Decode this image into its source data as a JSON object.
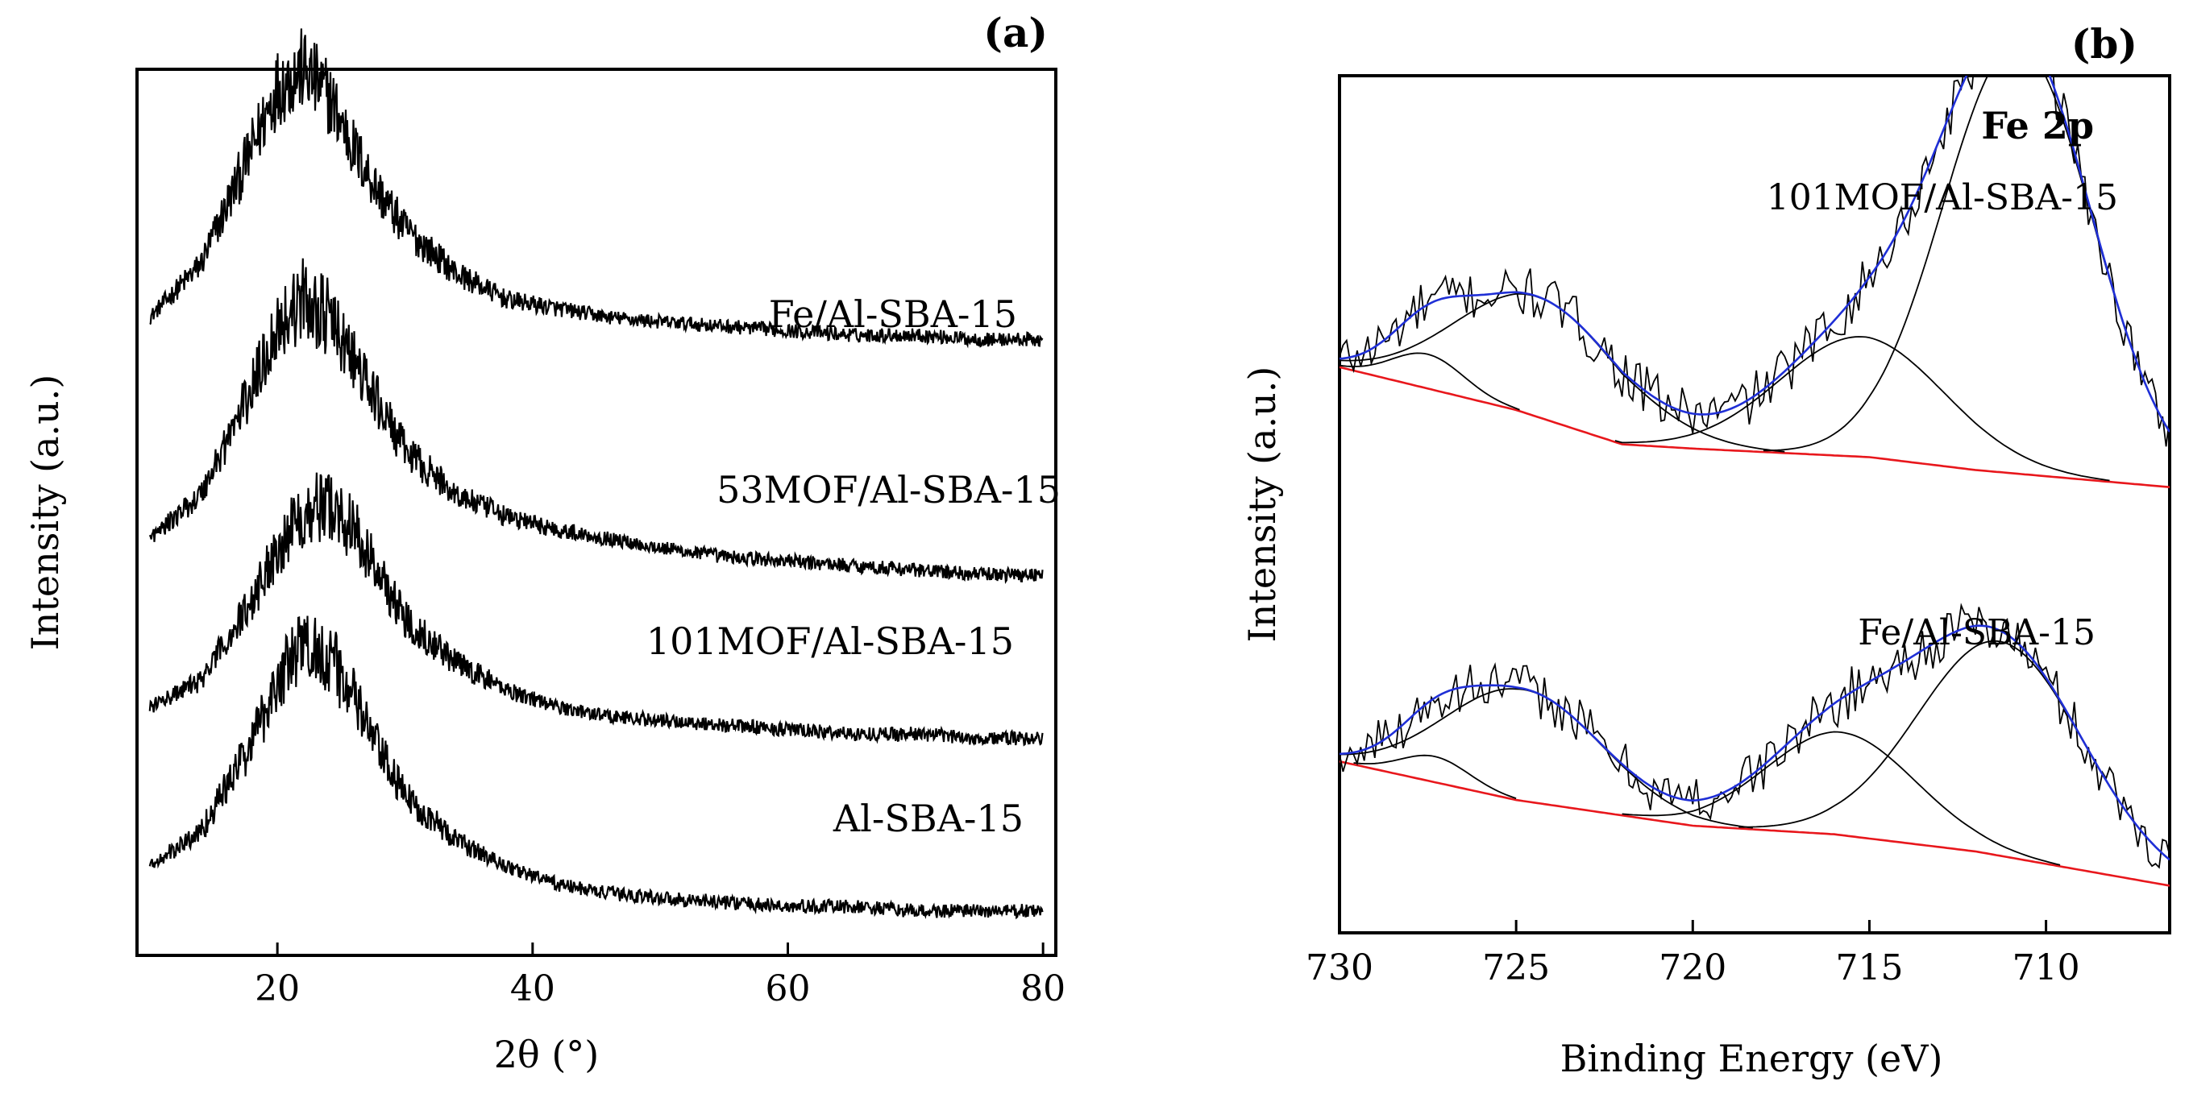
{
  "figure": {
    "panel_a_label": "(a)",
    "panel_b_label": "(b)"
  },
  "chart_data": [
    {
      "panel": "(a)",
      "type": "line",
      "title": "",
      "xlabel": "2θ (°)",
      "ylabel": "Intensity (a.u.)",
      "xlim": [
        9,
        81
      ],
      "ylim": [
        0,
        100
      ],
      "xticks": [
        20,
        40,
        60,
        80
      ],
      "xtick_labels": [
        "20",
        "40",
        "60",
        "80"
      ],
      "yticks_shown": false,
      "grid": false,
      "series": [
        {
          "name": "Fe/Al-SBA-15",
          "offset": 72,
          "x": [
            10,
            14,
            18,
            20,
            22,
            24,
            26,
            28,
            30,
            34,
            38,
            42,
            46,
            50,
            55,
            60,
            65,
            70,
            75,
            80
          ],
          "values": [
            0,
            6,
            19,
            26,
            28,
            25,
            19,
            14,
            10,
            5,
            2,
            1,
            0,
            -0.5,
            -1,
            -1.5,
            -2,
            -2,
            -2.5,
            -2.5
          ]
        },
        {
          "name": "53MOF/Al-SBA-15",
          "offset": 47,
          "x": [
            10,
            14,
            18,
            20,
            22,
            24,
            26,
            28,
            30,
            34,
            38,
            42,
            46,
            50,
            55,
            60,
            65,
            70,
            75,
            80
          ],
          "values": [
            0,
            5,
            17,
            24,
            27,
            25,
            20,
            15,
            10,
            5,
            2.5,
            1,
            0,
            -1,
            -2,
            -2.5,
            -3,
            -3.5,
            -4,
            -4
          ]
        },
        {
          "name": "101MOF/Al-SBA-15",
          "offset": 28,
          "x": [
            10,
            14,
            18,
            20,
            22,
            24,
            26,
            28,
            30,
            34,
            38,
            42,
            46,
            50,
            55,
            60,
            65,
            70,
            75,
            80
          ],
          "values": [
            0,
            3,
            12,
            18,
            22,
            23,
            20,
            15,
            10,
            5,
            2,
            0,
            -1,
            -1.5,
            -2,
            -2.5,
            -3,
            -3,
            -3.5,
            -3.5
          ]
        },
        {
          "name": "Al-SBA-15",
          "offset": 10,
          "x": [
            10,
            14,
            18,
            20,
            22,
            24,
            26,
            28,
            30,
            34,
            38,
            42,
            46,
            50,
            55,
            60,
            65,
            70,
            75,
            80
          ],
          "values": [
            0,
            4,
            14,
            21,
            25,
            24,
            19,
            13,
            8,
            3,
            0,
            -2,
            -3,
            -3.5,
            -4,
            -4.5,
            -4.5,
            -5,
            -5,
            -5
          ]
        }
      ]
    },
    {
      "panel": "(b)",
      "type": "line",
      "title": "Fe 2p",
      "xlabel": "Binding Energy (eV)",
      "ylabel": "Intensity (a.u.)",
      "xlim": [
        730,
        706.5
      ],
      "ylim": [
        0,
        100
      ],
      "xticks": [
        730,
        725,
        720,
        715,
        710
      ],
      "xtick_labels": [
        "730",
        "725",
        "720",
        "715",
        "710"
      ],
      "yticks_shown": false,
      "grid": false,
      "samples": [
        {
          "name": "101MOF/Al-SBA-15",
          "baseline": [
            [
              730,
              66
            ],
            [
              725,
              61
            ],
            [
              722,
              57
            ],
            [
              720,
              56.5
            ],
            [
              715,
              55.5
            ],
            [
              712,
              54
            ],
            [
              706.5,
              52
            ]
          ],
          "components": [
            {
              "center": 727.5,
              "fwhm": 2.4,
              "height": 4
            },
            {
              "center": 724.4,
              "fwhm": 5.5,
              "height": 14
            },
            {
              "center": 715.2,
              "fwhm": 5.5,
              "height": 14
            },
            {
              "center": 710.8,
              "fwhm": 5.0,
              "height": 50
            }
          ],
          "raw_noise": 3
        },
        {
          "name": "Fe/Al-SBA-15",
          "baseline": [
            [
              730,
              20
            ],
            [
              725,
              15.5
            ],
            [
              720,
              12.5
            ],
            [
              716,
              11.5
            ],
            [
              712,
              9.5
            ],
            [
              706.5,
              5.5
            ]
          ],
          "components": [
            {
              "center": 727.3,
              "fwhm": 2.3,
              "height": 3
            },
            {
              "center": 724.8,
              "fwhm": 5.2,
              "height": 13
            },
            {
              "center": 715.8,
              "fwhm": 5.0,
              "height": 12
            },
            {
              "center": 711.3,
              "fwhm": 5.5,
              "height": 25
            }
          ],
          "raw_noise": 3
        }
      ],
      "colors": {
        "raw": "#000000",
        "component": "#000000",
        "envelope": "#1f2fd6",
        "baseline": "#e8171c"
      }
    }
  ]
}
